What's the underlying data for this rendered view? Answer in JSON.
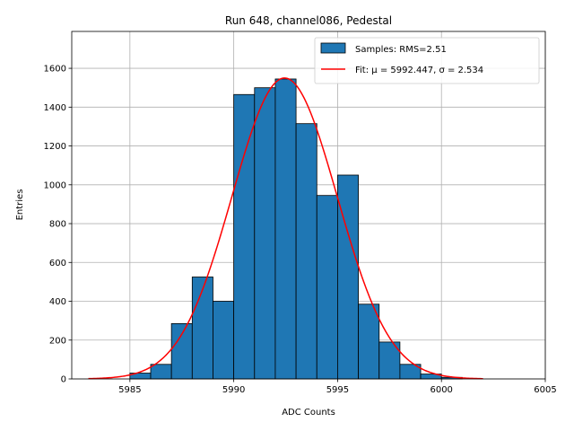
{
  "chart_data": {
    "type": "bar",
    "title": "Run 648, channel086, Pedestal",
    "xlabel": "ADC Counts",
    "ylabel": "Entries",
    "xlim": [
      5982.2,
      6005
    ],
    "ylim": [
      0,
      1790
    ],
    "xticks": [
      5985,
      5990,
      5995,
      6000,
      6005
    ],
    "yticks": [
      0,
      200,
      400,
      600,
      800,
      1000,
      1200,
      1400,
      1600
    ],
    "grid": true,
    "legend_position": "top-right",
    "bin_width": 1,
    "bins": [
      {
        "left": 5985,
        "value": 30
      },
      {
        "left": 5986,
        "value": 75
      },
      {
        "left": 5987,
        "value": 285
      },
      {
        "left": 5988,
        "value": 525
      },
      {
        "left": 5989,
        "value": 400
      },
      {
        "left": 5990,
        "value": 1465
      },
      {
        "left": 5991,
        "value": 1500
      },
      {
        "left": 5992,
        "value": 1545
      },
      {
        "left": 5993,
        "value": 1315
      },
      {
        "left": 5994,
        "value": 945
      },
      {
        "left": 5995,
        "value": 1050
      },
      {
        "left": 5996,
        "value": 385
      },
      {
        "left": 5997,
        "value": 190
      },
      {
        "left": 5998,
        "value": 75
      },
      {
        "left": 5999,
        "value": 25
      },
      {
        "left": 6000,
        "value": 8
      }
    ],
    "fit": {
      "mu": 5992.447,
      "sigma": 2.534,
      "amplitude": 1550,
      "x_range": [
        5983,
        6002
      ]
    },
    "series": [
      {
        "name": "Samples: RMS=2.51",
        "kind": "histogram",
        "color": "#1f77b4"
      },
      {
        "name": "Fit: μ = 5992.447, σ = 2.534",
        "kind": "line",
        "color": "#ff0000"
      }
    ]
  }
}
